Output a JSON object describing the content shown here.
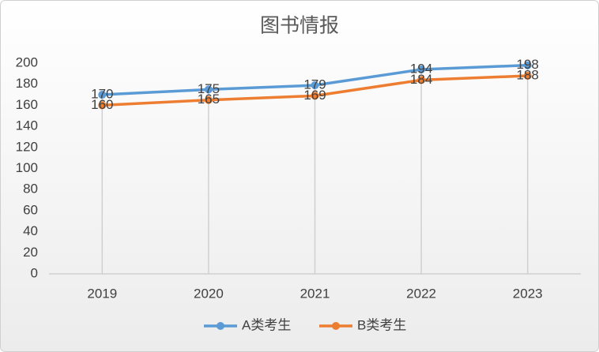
{
  "chart_data": {
    "type": "line",
    "title": "图书情报",
    "categories": [
      "2019",
      "2020",
      "2021",
      "2022",
      "2023"
    ],
    "series": [
      {
        "name": "A类考生",
        "color": "#5b9bd5",
        "values": [
          170,
          175,
          179,
          194,
          198
        ]
      },
      {
        "name": "B类考生",
        "color": "#ed7d31",
        "values": [
          160,
          165,
          169,
          184,
          188
        ]
      }
    ],
    "ylim": [
      0,
      200
    ],
    "yticks": [
      0,
      20,
      40,
      60,
      80,
      100,
      120,
      140,
      160,
      180,
      200
    ],
    "data_labels": true,
    "drop_lines": true,
    "legend": "bottom"
  }
}
